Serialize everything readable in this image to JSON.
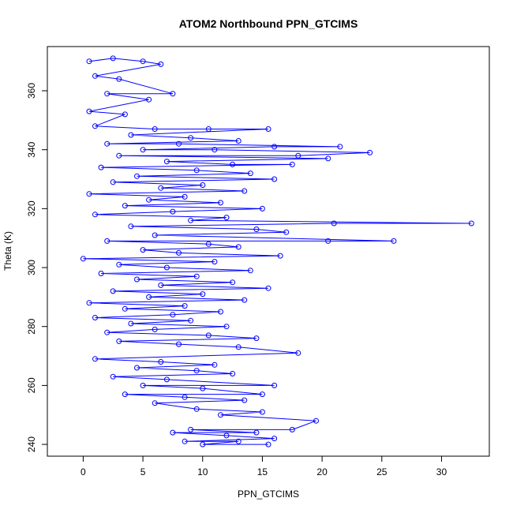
{
  "chart_data": {
    "type": "scatter",
    "title": "ATOM2 Northbound PPN_GTCIMS",
    "xlabel": "PPN_GTCIMS",
    "ylabel": "Theta (K)",
    "xlim": [
      -3,
      34
    ],
    "ylim": [
      236,
      375
    ],
    "x_ticks": [
      0,
      5,
      10,
      15,
      20,
      25,
      30
    ],
    "y_ticks": [
      240,
      260,
      280,
      300,
      320,
      340,
      360
    ],
    "grid": false,
    "legend": "none",
    "series_color": "#0000ff",
    "series": [
      {
        "style": "points+lines",
        "points": [
          {
            "x": 0.5,
            "y": 370
          },
          {
            "x": 2.5,
            "y": 371
          },
          {
            "x": 5.0,
            "y": 370
          },
          {
            "x": 6.5,
            "y": 369
          },
          {
            "x": 1.0,
            "y": 365
          },
          {
            "x": 3.0,
            "y": 364
          },
          {
            "x": 7.5,
            "y": 359
          },
          {
            "x": 2.0,
            "y": 359
          },
          {
            "x": 5.5,
            "y": 357
          },
          {
            "x": 0.5,
            "y": 353
          },
          {
            "x": 3.5,
            "y": 352
          },
          {
            "x": 1.0,
            "y": 348
          },
          {
            "x": 6.0,
            "y": 347
          },
          {
            "x": 10.5,
            "y": 347
          },
          {
            "x": 15.5,
            "y": 347
          },
          {
            "x": 4.0,
            "y": 345
          },
          {
            "x": 9.0,
            "y": 344
          },
          {
            "x": 13.0,
            "y": 343
          },
          {
            "x": 2.0,
            "y": 342
          },
          {
            "x": 8.0,
            "y": 342
          },
          {
            "x": 21.5,
            "y": 341
          },
          {
            "x": 16.0,
            "y": 341
          },
          {
            "x": 5.0,
            "y": 340
          },
          {
            "x": 11.0,
            "y": 340
          },
          {
            "x": 24.0,
            "y": 339
          },
          {
            "x": 18.0,
            "y": 338
          },
          {
            "x": 3.0,
            "y": 338
          },
          {
            "x": 20.5,
            "y": 337
          },
          {
            "x": 7.0,
            "y": 336
          },
          {
            "x": 12.5,
            "y": 335
          },
          {
            "x": 17.5,
            "y": 335
          },
          {
            "x": 1.5,
            "y": 334
          },
          {
            "x": 9.5,
            "y": 333
          },
          {
            "x": 14.0,
            "y": 332
          },
          {
            "x": 4.5,
            "y": 331
          },
          {
            "x": 16.0,
            "y": 330
          },
          {
            "x": 2.5,
            "y": 329
          },
          {
            "x": 10.0,
            "y": 328
          },
          {
            "x": 6.5,
            "y": 327
          },
          {
            "x": 13.5,
            "y": 326
          },
          {
            "x": 0.5,
            "y": 325
          },
          {
            "x": 8.5,
            "y": 324
          },
          {
            "x": 5.5,
            "y": 323
          },
          {
            "x": 11.5,
            "y": 322
          },
          {
            "x": 3.5,
            "y": 321
          },
          {
            "x": 15.0,
            "y": 320
          },
          {
            "x": 7.5,
            "y": 319
          },
          {
            "x": 1.0,
            "y": 318
          },
          {
            "x": 12.0,
            "y": 317
          },
          {
            "x": 9.0,
            "y": 316
          },
          {
            "x": 32.5,
            "y": 315
          },
          {
            "x": 21.0,
            "y": 315
          },
          {
            "x": 4.0,
            "y": 314
          },
          {
            "x": 14.5,
            "y": 313
          },
          {
            "x": 17.0,
            "y": 312
          },
          {
            "x": 6.0,
            "y": 311
          },
          {
            "x": 26.0,
            "y": 309
          },
          {
            "x": 20.5,
            "y": 309
          },
          {
            "x": 2.0,
            "y": 309
          },
          {
            "x": 10.5,
            "y": 308
          },
          {
            "x": 13.0,
            "y": 307
          },
          {
            "x": 5.0,
            "y": 306
          },
          {
            "x": 8.0,
            "y": 305
          },
          {
            "x": 16.5,
            "y": 304
          },
          {
            "x": 0.0,
            "y": 303
          },
          {
            "x": 11.0,
            "y": 302
          },
          {
            "x": 3.0,
            "y": 301
          },
          {
            "x": 7.0,
            "y": 300
          },
          {
            "x": 14.0,
            "y": 299
          },
          {
            "x": 1.5,
            "y": 298
          },
          {
            "x": 9.5,
            "y": 297
          },
          {
            "x": 4.5,
            "y": 296
          },
          {
            "x": 12.5,
            "y": 295
          },
          {
            "x": 6.5,
            "y": 294
          },
          {
            "x": 15.5,
            "y": 293
          },
          {
            "x": 2.5,
            "y": 292
          },
          {
            "x": 10.0,
            "y": 291
          },
          {
            "x": 5.5,
            "y": 290
          },
          {
            "x": 13.5,
            "y": 289
          },
          {
            "x": 0.5,
            "y": 288
          },
          {
            "x": 8.5,
            "y": 287
          },
          {
            "x": 3.5,
            "y": 286
          },
          {
            "x": 11.5,
            "y": 285
          },
          {
            "x": 7.5,
            "y": 284
          },
          {
            "x": 1.0,
            "y": 283
          },
          {
            "x": 9.0,
            "y": 282
          },
          {
            "x": 4.0,
            "y": 281
          },
          {
            "x": 12.0,
            "y": 280
          },
          {
            "x": 6.0,
            "y": 279
          },
          {
            "x": 2.0,
            "y": 278
          },
          {
            "x": 10.5,
            "y": 277
          },
          {
            "x": 14.5,
            "y": 276
          },
          {
            "x": 3.0,
            "y": 275
          },
          {
            "x": 8.0,
            "y": 274
          },
          {
            "x": 13.0,
            "y": 273
          },
          {
            "x": 18.0,
            "y": 271
          },
          {
            "x": 1.0,
            "y": 269
          },
          {
            "x": 6.5,
            "y": 268
          },
          {
            "x": 11.0,
            "y": 267
          },
          {
            "x": 4.5,
            "y": 266
          },
          {
            "x": 9.5,
            "y": 265
          },
          {
            "x": 12.5,
            "y": 264
          },
          {
            "x": 2.5,
            "y": 263
          },
          {
            "x": 7.0,
            "y": 262
          },
          {
            "x": 16.0,
            "y": 260
          },
          {
            "x": 5.0,
            "y": 260
          },
          {
            "x": 10.0,
            "y": 259
          },
          {
            "x": 15.0,
            "y": 257
          },
          {
            "x": 3.5,
            "y": 257
          },
          {
            "x": 8.5,
            "y": 256
          },
          {
            "x": 13.5,
            "y": 255
          },
          {
            "x": 6.0,
            "y": 254
          },
          {
            "x": 9.5,
            "y": 252
          },
          {
            "x": 15.0,
            "y": 251
          },
          {
            "x": 11.5,
            "y": 250
          },
          {
            "x": 19.5,
            "y": 248
          },
          {
            "x": 17.5,
            "y": 245
          },
          {
            "x": 9.0,
            "y": 245
          },
          {
            "x": 14.5,
            "y": 244
          },
          {
            "x": 7.5,
            "y": 244
          },
          {
            "x": 12.0,
            "y": 243
          },
          {
            "x": 16.0,
            "y": 242
          },
          {
            "x": 8.5,
            "y": 241
          },
          {
            "x": 13.0,
            "y": 241
          },
          {
            "x": 10.0,
            "y": 240
          },
          {
            "x": 15.5,
            "y": 240
          }
        ]
      }
    ]
  }
}
